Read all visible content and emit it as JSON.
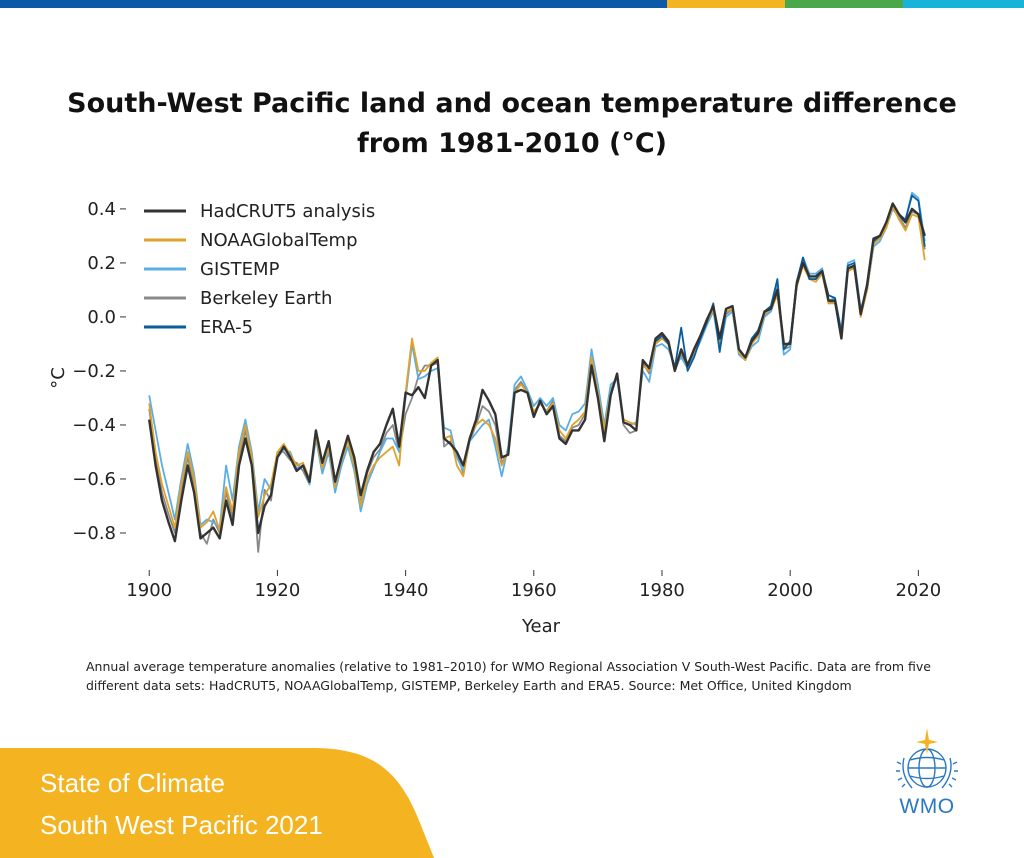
{
  "colors": {
    "topbar": [
      "#0b5aa8",
      "#f4b321",
      "#4aa84a",
      "#18b3d8"
    ],
    "footer_bg": "#f4b321",
    "wmo_blue": "#2a79c2"
  },
  "title_line1": "South-West Pacific land and ocean temperature difference",
  "title_line2": "from 1981-2010 (°C)",
  "caption_line1": "Annual average temperature anomalies (relative to 1981–2010) for WMO Regional Association V South-West Pacific. Data are from five",
  "caption_line2": "different data sets: HadCRUT5, NOAAGlobalTemp, GISTEMP, Berkeley Earth and ERA5. Source:  Met Office, United Kingdom",
  "footer": {
    "line1": "State of Climate",
    "line2": "South West Pacific 2021"
  },
  "logo": {
    "text": "WMO"
  },
  "chart_data": {
    "type": "line",
    "xlabel": "Year",
    "ylabel": "°C",
    "xlim": [
      1897,
      2024
    ],
    "ylim": [
      -0.9,
      0.47
    ],
    "xticks": [
      1900,
      1920,
      1940,
      1960,
      1980,
      2000,
      2020
    ],
    "yticks": [
      -0.8,
      -0.6,
      -0.4,
      -0.2,
      0.0,
      0.2,
      0.4
    ],
    "ytick_labels": [
      "−0.8",
      "−0.6",
      "−0.4",
      "−0.2",
      "0.0",
      "0.2",
      "0.4"
    ],
    "grid": false,
    "legend_position": "top-left",
    "series": [
      {
        "name": "HadCRUT5 analysis",
        "color": "#333333",
        "x": [
          1900,
          1901,
          1902,
          1903,
          1904,
          1905,
          1906,
          1907,
          1908,
          1909,
          1910,
          1911,
          1912,
          1913,
          1914,
          1915,
          1916,
          1917,
          1918,
          1919,
          1920,
          1921,
          1922,
          1923,
          1924,
          1925,
          1926,
          1927,
          1928,
          1929,
          1930,
          1931,
          1932,
          1933,
          1934,
          1935,
          1936,
          1937,
          1938,
          1939,
          1940,
          1941,
          1942,
          1943,
          1944,
          1945,
          1946,
          1947,
          1948,
          1949,
          1950,
          1951,
          1952,
          1953,
          1954,
          1955,
          1956,
          1957,
          1958,
          1959,
          1960,
          1961,
          1962,
          1963,
          1964,
          1965,
          1966,
          1967,
          1968,
          1969,
          1970,
          1971,
          1972,
          1973,
          1974,
          1975,
          1976,
          1977,
          1978,
          1979,
          1980,
          1981,
          1982,
          1983,
          1984,
          1985,
          1986,
          1987,
          1988,
          1989,
          1990,
          1991,
          1992,
          1993,
          1994,
          1995,
          1996,
          1997,
          1998,
          1999,
          2000,
          2001,
          2002,
          2003,
          2004,
          2005,
          2006,
          2007,
          2008,
          2009,
          2010,
          2011,
          2012,
          2013,
          2014,
          2015,
          2016,
          2017,
          2018,
          2019,
          2020,
          2021
        ],
        "values": [
          -0.38,
          -0.55,
          -0.68,
          -0.76,
          -0.83,
          -0.68,
          -0.55,
          -0.65,
          -0.82,
          -0.8,
          -0.78,
          -0.82,
          -0.68,
          -0.77,
          -0.55,
          -0.45,
          -0.55,
          -0.8,
          -0.7,
          -0.66,
          -0.52,
          -0.48,
          -0.52,
          -0.57,
          -0.55,
          -0.61,
          -0.42,
          -0.54,
          -0.46,
          -0.61,
          -0.52,
          -0.44,
          -0.52,
          -0.66,
          -0.57,
          -0.5,
          -0.47,
          -0.4,
          -0.34,
          -0.48,
          -0.28,
          -0.29,
          -0.26,
          -0.3,
          -0.18,
          -0.16,
          -0.45,
          -0.47,
          -0.5,
          -0.55,
          -0.45,
          -0.38,
          -0.27,
          -0.31,
          -0.36,
          -0.52,
          -0.51,
          -0.28,
          -0.27,
          -0.28,
          -0.37,
          -0.31,
          -0.36,
          -0.33,
          -0.45,
          -0.47,
          -0.42,
          -0.42,
          -0.38,
          -0.18,
          -0.3,
          -0.46,
          -0.29,
          -0.21,
          -0.39,
          -0.4,
          -0.42,
          -0.16,
          -0.19,
          -0.08,
          -0.06,
          -0.09,
          -0.2,
          -0.12,
          -0.18,
          -0.12,
          -0.07,
          -0.01,
          0.04,
          -0.08,
          0.03,
          0.04,
          -0.12,
          -0.15,
          -0.09,
          -0.06,
          0.02,
          0.03,
          0.1,
          -0.1,
          -0.1,
          0.12,
          0.2,
          0.15,
          0.15,
          0.17,
          0.06,
          0.06,
          -0.08,
          0.18,
          0.19,
          0.01,
          0.12,
          0.29,
          0.3,
          0.35,
          0.42,
          0.38,
          0.35,
          0.4,
          0.38,
          0.3
        ]
      },
      {
        "name": "NOAAGlobalTemp",
        "color": "#e0a22a",
        "x": [
          1900,
          1901,
          1902,
          1903,
          1904,
          1905,
          1906,
          1907,
          1908,
          1909,
          1910,
          1911,
          1912,
          1913,
          1914,
          1915,
          1916,
          1917,
          1918,
          1919,
          1920,
          1921,
          1922,
          1923,
          1924,
          1925,
          1926,
          1927,
          1928,
          1929,
          1930,
          1931,
          1932,
          1933,
          1934,
          1935,
          1936,
          1937,
          1938,
          1939,
          1940,
          1941,
          1942,
          1943,
          1944,
          1945,
          1946,
          1947,
          1948,
          1949,
          1950,
          1951,
          1952,
          1953,
          1954,
          1955,
          1956,
          1957,
          1958,
          1959,
          1960,
          1961,
          1962,
          1963,
          1964,
          1965,
          1966,
          1967,
          1968,
          1969,
          1970,
          1971,
          1972,
          1973,
          1974,
          1975,
          1976,
          1977,
          1978,
          1979,
          1980,
          1981,
          1982,
          1983,
          1984,
          1985,
          1986,
          1987,
          1988,
          1989,
          1990,
          1991,
          1992,
          1993,
          1994,
          1995,
          1996,
          1997,
          1998,
          1999,
          2000,
          2001,
          2002,
          2003,
          2004,
          2005,
          2006,
          2007,
          2008,
          2009,
          2010,
          2011,
          2012,
          2013,
          2014,
          2015,
          2016,
          2017,
          2018,
          2019,
          2020,
          2021
        ],
        "values": [
          -0.32,
          -0.5,
          -0.62,
          -0.7,
          -0.78,
          -0.62,
          -0.5,
          -0.6,
          -0.78,
          -0.76,
          -0.72,
          -0.79,
          -0.63,
          -0.72,
          -0.5,
          -0.4,
          -0.52,
          -0.74,
          -0.66,
          -0.62,
          -0.5,
          -0.47,
          -0.51,
          -0.55,
          -0.54,
          -0.6,
          -0.44,
          -0.56,
          -0.48,
          -0.63,
          -0.53,
          -0.46,
          -0.55,
          -0.7,
          -0.6,
          -0.55,
          -0.52,
          -0.5,
          -0.48,
          -0.55,
          -0.28,
          -0.08,
          -0.2,
          -0.2,
          -0.17,
          -0.15,
          -0.45,
          -0.44,
          -0.55,
          -0.59,
          -0.45,
          -0.4,
          -0.38,
          -0.4,
          -0.45,
          -0.55,
          -0.5,
          -0.28,
          -0.25,
          -0.28,
          -0.35,
          -0.32,
          -0.35,
          -0.32,
          -0.42,
          -0.45,
          -0.4,
          -0.38,
          -0.35,
          -0.15,
          -0.28,
          -0.42,
          -0.28,
          -0.22,
          -0.38,
          -0.39,
          -0.4,
          -0.18,
          -0.2,
          -0.1,
          -0.08,
          -0.1,
          -0.19,
          -0.13,
          -0.17,
          -0.13,
          -0.07,
          -0.02,
          0.03,
          -0.09,
          0.02,
          0.03,
          -0.13,
          -0.16,
          -0.1,
          -0.07,
          0.01,
          0.03,
          0.08,
          -0.11,
          -0.1,
          0.11,
          0.19,
          0.14,
          0.13,
          0.16,
          0.05,
          0.05,
          -0.07,
          0.17,
          0.18,
          0.0,
          0.1,
          0.27,
          0.29,
          0.33,
          0.41,
          0.36,
          0.32,
          0.38,
          0.37,
          0.21
        ]
      },
      {
        "name": "GISTEMP",
        "color": "#5aaee6",
        "x": [
          1900,
          1901,
          1902,
          1903,
          1904,
          1905,
          1906,
          1907,
          1908,
          1909,
          1910,
          1911,
          1912,
          1913,
          1914,
          1915,
          1916,
          1917,
          1918,
          1919,
          1920,
          1921,
          1922,
          1923,
          1924,
          1925,
          1926,
          1927,
          1928,
          1929,
          1930,
          1931,
          1932,
          1933,
          1934,
          1935,
          1936,
          1937,
          1938,
          1939,
          1940,
          1941,
          1942,
          1943,
          1944,
          1945,
          1946,
          1947,
          1948,
          1949,
          1950,
          1951,
          1952,
          1953,
          1954,
          1955,
          1956,
          1957,
          1958,
          1959,
          1960,
          1961,
          1962,
          1963,
          1964,
          1965,
          1966,
          1967,
          1968,
          1969,
          1970,
          1971,
          1972,
          1973,
          1974,
          1975,
          1976,
          1977,
          1978,
          1979,
          1980,
          1981,
          1982,
          1983,
          1984,
          1985,
          1986,
          1987,
          1988,
          1989,
          1990,
          1991,
          1992,
          1993,
          1994,
          1995,
          1996,
          1997,
          1998,
          1999,
          2000,
          2001,
          2002,
          2003,
          2004,
          2005,
          2006,
          2007,
          2008,
          2009,
          2010,
          2011,
          2012,
          2013,
          2014,
          2015,
          2016,
          2017,
          2018,
          2019,
          2020,
          2021
        ],
        "values": [
          -0.29,
          -0.42,
          -0.55,
          -0.65,
          -0.75,
          -0.6,
          -0.47,
          -0.58,
          -0.77,
          -0.75,
          -0.76,
          -0.78,
          -0.55,
          -0.68,
          -0.48,
          -0.38,
          -0.5,
          -0.72,
          -0.6,
          -0.64,
          -0.52,
          -0.49,
          -0.5,
          -0.56,
          -0.55,
          -0.62,
          -0.45,
          -0.58,
          -0.5,
          -0.65,
          -0.55,
          -0.48,
          -0.57,
          -0.72,
          -0.62,
          -0.56,
          -0.5,
          -0.45,
          -0.45,
          -0.5,
          -0.3,
          -0.1,
          -0.23,
          -0.22,
          -0.2,
          -0.19,
          -0.41,
          -0.42,
          -0.52,
          -0.57,
          -0.46,
          -0.43,
          -0.4,
          -0.38,
          -0.48,
          -0.59,
          -0.48,
          -0.25,
          -0.22,
          -0.27,
          -0.33,
          -0.3,
          -0.33,
          -0.3,
          -0.4,
          -0.42,
          -0.36,
          -0.35,
          -0.32,
          -0.12,
          -0.25,
          -0.4,
          -0.25,
          -0.23,
          -0.39,
          -0.4,
          -0.39,
          -0.2,
          -0.24,
          -0.11,
          -0.1,
          -0.12,
          -0.18,
          -0.15,
          -0.19,
          -0.14,
          -0.09,
          -0.03,
          0.02,
          -0.12,
          0.0,
          0.02,
          -0.14,
          -0.16,
          -0.11,
          -0.09,
          0.0,
          0.02,
          0.12,
          -0.14,
          -0.12,
          0.12,
          0.22,
          0.16,
          0.16,
          0.18,
          0.06,
          0.07,
          -0.05,
          0.2,
          0.21,
          0.03,
          0.1,
          0.26,
          0.28,
          0.33,
          0.4,
          0.37,
          0.36,
          0.46,
          0.44,
          0.28
        ]
      },
      {
        "name": "Berkeley Earth",
        "color": "#8a8a8a",
        "x": [
          1900,
          1901,
          1902,
          1903,
          1904,
          1905,
          1906,
          1907,
          1908,
          1909,
          1910,
          1911,
          1912,
          1913,
          1914,
          1915,
          1916,
          1917,
          1918,
          1919,
          1920,
          1921,
          1922,
          1923,
          1924,
          1925,
          1926,
          1927,
          1928,
          1929,
          1930,
          1931,
          1932,
          1933,
          1934,
          1935,
          1936,
          1937,
          1938,
          1939,
          1940,
          1941,
          1942,
          1943,
          1944,
          1945,
          1946,
          1947,
          1948,
          1949,
          1950,
          1951,
          1952,
          1953,
          1954,
          1955,
          1956,
          1957,
          1958,
          1959,
          1960,
          1961,
          1962,
          1963,
          1964,
          1965,
          1966,
          1967,
          1968,
          1969,
          1970,
          1971,
          1972,
          1973,
          1974,
          1975,
          1976,
          1977,
          1978,
          1979,
          1980,
          1981,
          1982,
          1983,
          1984,
          1985,
          1986,
          1987,
          1988,
          1989,
          1990,
          1991,
          1992,
          1993,
          1994,
          1995,
          1996,
          1997,
          1998,
          1999,
          2000,
          2001,
          2002,
          2003,
          2004,
          2005,
          2006,
          2007,
          2008,
          2009,
          2010,
          2011,
          2012,
          2013,
          2014,
          2015,
          2016,
          2017,
          2018,
          2019,
          2020,
          2021
        ],
        "values": [
          -0.34,
          -0.52,
          -0.65,
          -0.73,
          -0.8,
          -0.65,
          -0.52,
          -0.62,
          -0.8,
          -0.84,
          -0.75,
          -0.8,
          -0.65,
          -0.74,
          -0.52,
          -0.42,
          -0.55,
          -0.87,
          -0.64,
          -0.68,
          -0.5,
          -0.5,
          -0.53,
          -0.54,
          -0.57,
          -0.62,
          -0.43,
          -0.55,
          -0.47,
          -0.62,
          -0.52,
          -0.45,
          -0.54,
          -0.69,
          -0.58,
          -0.52,
          -0.49,
          -0.43,
          -0.4,
          -0.5,
          -0.36,
          -0.3,
          -0.22,
          -0.18,
          -0.18,
          -0.17,
          -0.48,
          -0.46,
          -0.5,
          -0.58,
          -0.46,
          -0.4,
          -0.33,
          -0.35,
          -0.4,
          -0.54,
          -0.5,
          -0.27,
          -0.24,
          -0.28,
          -0.36,
          -0.32,
          -0.35,
          -0.31,
          -0.44,
          -0.46,
          -0.41,
          -0.4,
          -0.36,
          -0.17,
          -0.29,
          -0.44,
          -0.27,
          -0.22,
          -0.4,
          -0.43,
          -0.42,
          -0.17,
          -0.21,
          -0.09,
          -0.08,
          -0.1,
          -0.2,
          -0.14,
          -0.18,
          -0.12,
          -0.07,
          -0.02,
          0.03,
          -0.1,
          0.01,
          0.03,
          -0.12,
          -0.16,
          -0.1,
          -0.07,
          0.01,
          0.02,
          0.09,
          -0.12,
          -0.11,
          0.11,
          0.2,
          0.14,
          0.14,
          0.16,
          0.05,
          0.06,
          -0.07,
          0.18,
          0.18,
          0.01,
          0.1,
          0.27,
          0.3,
          0.34,
          0.41,
          0.37,
          0.33,
          0.39,
          0.38,
          0.25
        ]
      },
      {
        "name": "ERA-5",
        "color": "#0a5c9c",
        "x": [
          1979,
          1980,
          1981,
          1982,
          1983,
          1984,
          1985,
          1986,
          1987,
          1988,
          1989,
          1990,
          1991,
          1992,
          1993,
          1994,
          1995,
          1996,
          1997,
          1998,
          1999,
          2000,
          2001,
          2002,
          2003,
          2004,
          2005,
          2006,
          2007,
          2008,
          2009,
          2010,
          2011,
          2012,
          2013,
          2014,
          2015,
          2016,
          2017,
          2018,
          2019,
          2020,
          2021
        ],
        "values": [
          -0.09,
          -0.07,
          -0.1,
          -0.19,
          -0.04,
          -0.2,
          -0.15,
          -0.08,
          -0.02,
          0.05,
          -0.13,
          0.03,
          0.04,
          -0.12,
          -0.15,
          -0.08,
          -0.05,
          0.02,
          0.04,
          0.14,
          -0.12,
          -0.09,
          0.13,
          0.22,
          0.14,
          0.14,
          0.17,
          0.08,
          0.07,
          -0.06,
          0.19,
          0.2,
          0.02,
          0.11,
          0.28,
          0.3,
          0.35,
          0.42,
          0.38,
          0.36,
          0.45,
          0.43,
          0.26
        ]
      }
    ]
  }
}
